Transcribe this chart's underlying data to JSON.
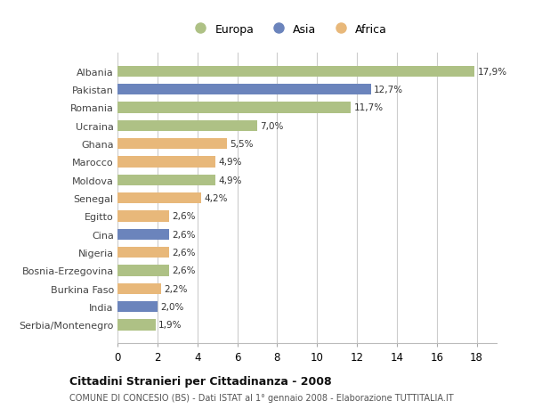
{
  "countries": [
    "Albania",
    "Pakistan",
    "Romania",
    "Ucraina",
    "Ghana",
    "Marocco",
    "Moldova",
    "Senegal",
    "Egitto",
    "Cina",
    "Nigeria",
    "Bosnia-Erzegovina",
    "Burkina Faso",
    "India",
    "Serbia/Montenegro"
  ],
  "values": [
    17.9,
    12.7,
    11.7,
    7.0,
    5.5,
    4.9,
    4.9,
    4.2,
    2.6,
    2.6,
    2.6,
    2.6,
    2.2,
    2.0,
    1.9
  ],
  "continents": [
    "Europa",
    "Asia",
    "Europa",
    "Europa",
    "Africa",
    "Africa",
    "Europa",
    "Africa",
    "Africa",
    "Asia",
    "Africa",
    "Europa",
    "Africa",
    "Asia",
    "Europa"
  ],
  "colors": {
    "Europa": "#aec185",
    "Asia": "#6b84bc",
    "Africa": "#e8b87a"
  },
  "legend_labels": [
    "Europa",
    "Asia",
    "Africa"
  ],
  "xlim": [
    0,
    19
  ],
  "xticks": [
    0,
    2,
    4,
    6,
    8,
    10,
    12,
    14,
    16,
    18
  ],
  "title_bold": "Cittadini Stranieri per Cittadinanza - 2008",
  "subtitle": "COMUNE DI CONCESIO (BS) - Dati ISTAT al 1° gennaio 2008 - Elaborazione TUTTITALIA.IT",
  "bg_color": "#ffffff",
  "grid_color": "#cccccc",
  "bar_height": 0.6
}
